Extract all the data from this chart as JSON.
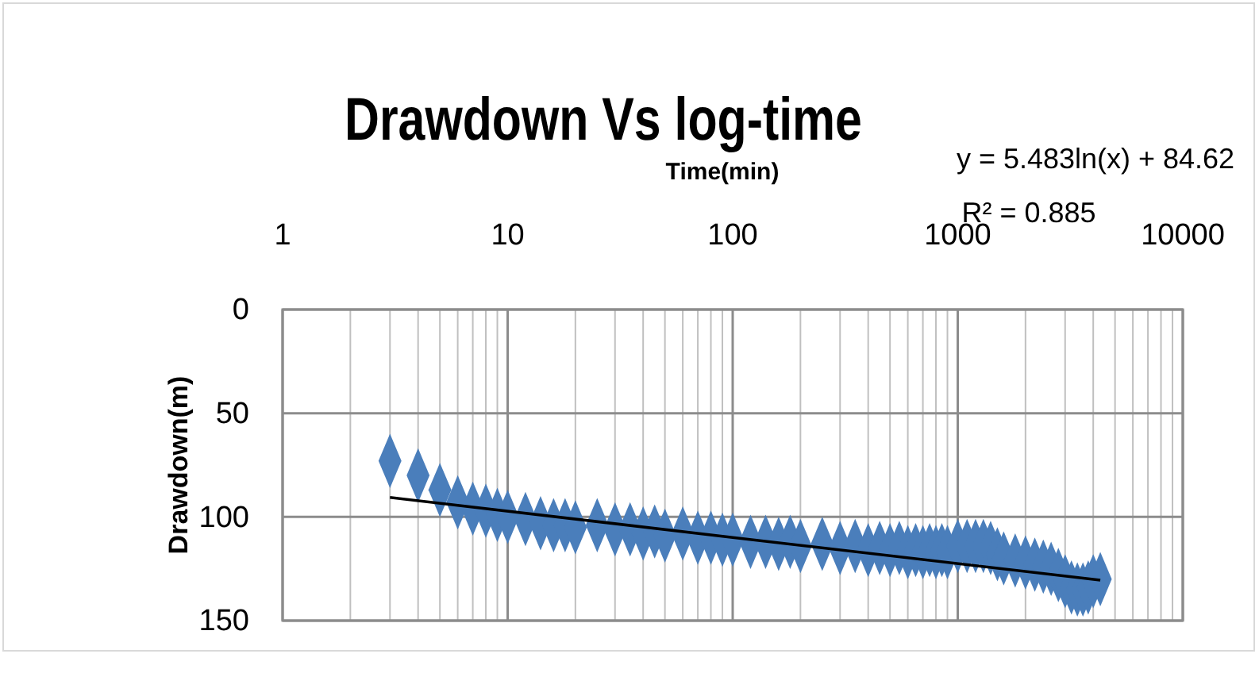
{
  "chart_data": {
    "type": "scatter",
    "title": "Drawdown Vs log-time",
    "xlabel": "Time(min)",
    "ylabel": "Drawdown(m)",
    "annotations": [
      "y = 5.483ln(x) + 84.62",
      "R² = 0.885"
    ],
    "log": "x",
    "grid": true,
    "xlim": [
      1,
      10000
    ],
    "ylim": [
      150,
      0
    ],
    "xticks": [
      1,
      {
        "value": 2,
        "label": null
      },
      {
        "value": 3,
        "label": null
      },
      {
        "value": 4,
        "label": null
      },
      {
        "value": 5,
        "label": null
      },
      {
        "value": 6,
        "label": null
      },
      {
        "value": 7,
        "label": null
      },
      {
        "value": 8,
        "label": null
      },
      {
        "value": 9,
        "label": null
      },
      10,
      {
        "value": 20,
        "label": null
      },
      {
        "value": 30,
        "label": null
      },
      {
        "value": 40,
        "label": null
      },
      {
        "value": 50,
        "label": null
      },
      {
        "value": 60,
        "label": null
      },
      {
        "value": 70,
        "label": null
      },
      {
        "value": 80,
        "label": null
      },
      {
        "value": 90,
        "label": null
      },
      100,
      {
        "value": 200,
        "label": null
      },
      {
        "value": 300,
        "label": null
      },
      {
        "value": 400,
        "label": null
      },
      {
        "value": 500,
        "label": null
      },
      {
        "value": 600,
        "label": null
      },
      {
        "value": 700,
        "label": null
      },
      {
        "value": 800,
        "label": null
      },
      {
        "value": 900,
        "label": null
      },
      1000,
      {
        "value": 2000,
        "label": null
      },
      {
        "value": 3000,
        "label": null
      },
      {
        "value": 4000,
        "label": null
      },
      {
        "value": 5000,
        "label": null
      },
      {
        "value": 6000,
        "label": null
      },
      {
        "value": 7000,
        "label": null
      },
      {
        "value": 8000,
        "label": null
      },
      {
        "value": 9000,
        "label": null
      },
      10000
    ],
    "yticks": [
      0,
      50,
      100,
      150
    ],
    "series": [
      {
        "color": "#4a7ebb",
        "marker": "diamond",
        "x": [
          3,
          4,
          5,
          6,
          7,
          8,
          9,
          10,
          12,
          14,
          16,
          18,
          20,
          25,
          30,
          35,
          40,
          45,
          50,
          60,
          70,
          80,
          90,
          100,
          120,
          140,
          160,
          180,
          200,
          250,
          300,
          350,
          400,
          450,
          500,
          550,
          600,
          650,
          700,
          750,
          800,
          850,
          900,
          1000,
          1100,
          1200,
          1300,
          1400,
          1500,
          1600,
          1800,
          2000,
          2200,
          2400,
          2600,
          2800,
          3000,
          3200,
          3400,
          3600,
          3800,
          4000,
          4300
        ],
        "values": [
          73,
          80,
          87,
          93,
          96,
          97,
          99,
          100,
          101,
          103,
          104,
          104,
          105,
          104,
          106,
          106,
          108,
          107,
          109,
          108,
          110,
          110,
          111,
          111,
          112,
          112,
          113,
          112,
          114,
          113,
          115,
          114,
          116,
          115,
          116,
          115,
          117,
          116,
          117,
          116,
          117,
          116,
          117,
          114,
          114,
          114,
          114,
          115,
          118,
          120,
          121,
          122,
          123,
          124,
          125,
          128,
          131,
          134,
          135,
          135,
          134,
          131,
          130
        ]
      },
      {
        "type": "line",
        "color": "#000000",
        "marker": "none",
        "x": [
          3,
          100,
          4300
        ],
        "values": [
          90.6,
          109.9,
          130.5
        ]
      }
    ]
  }
}
